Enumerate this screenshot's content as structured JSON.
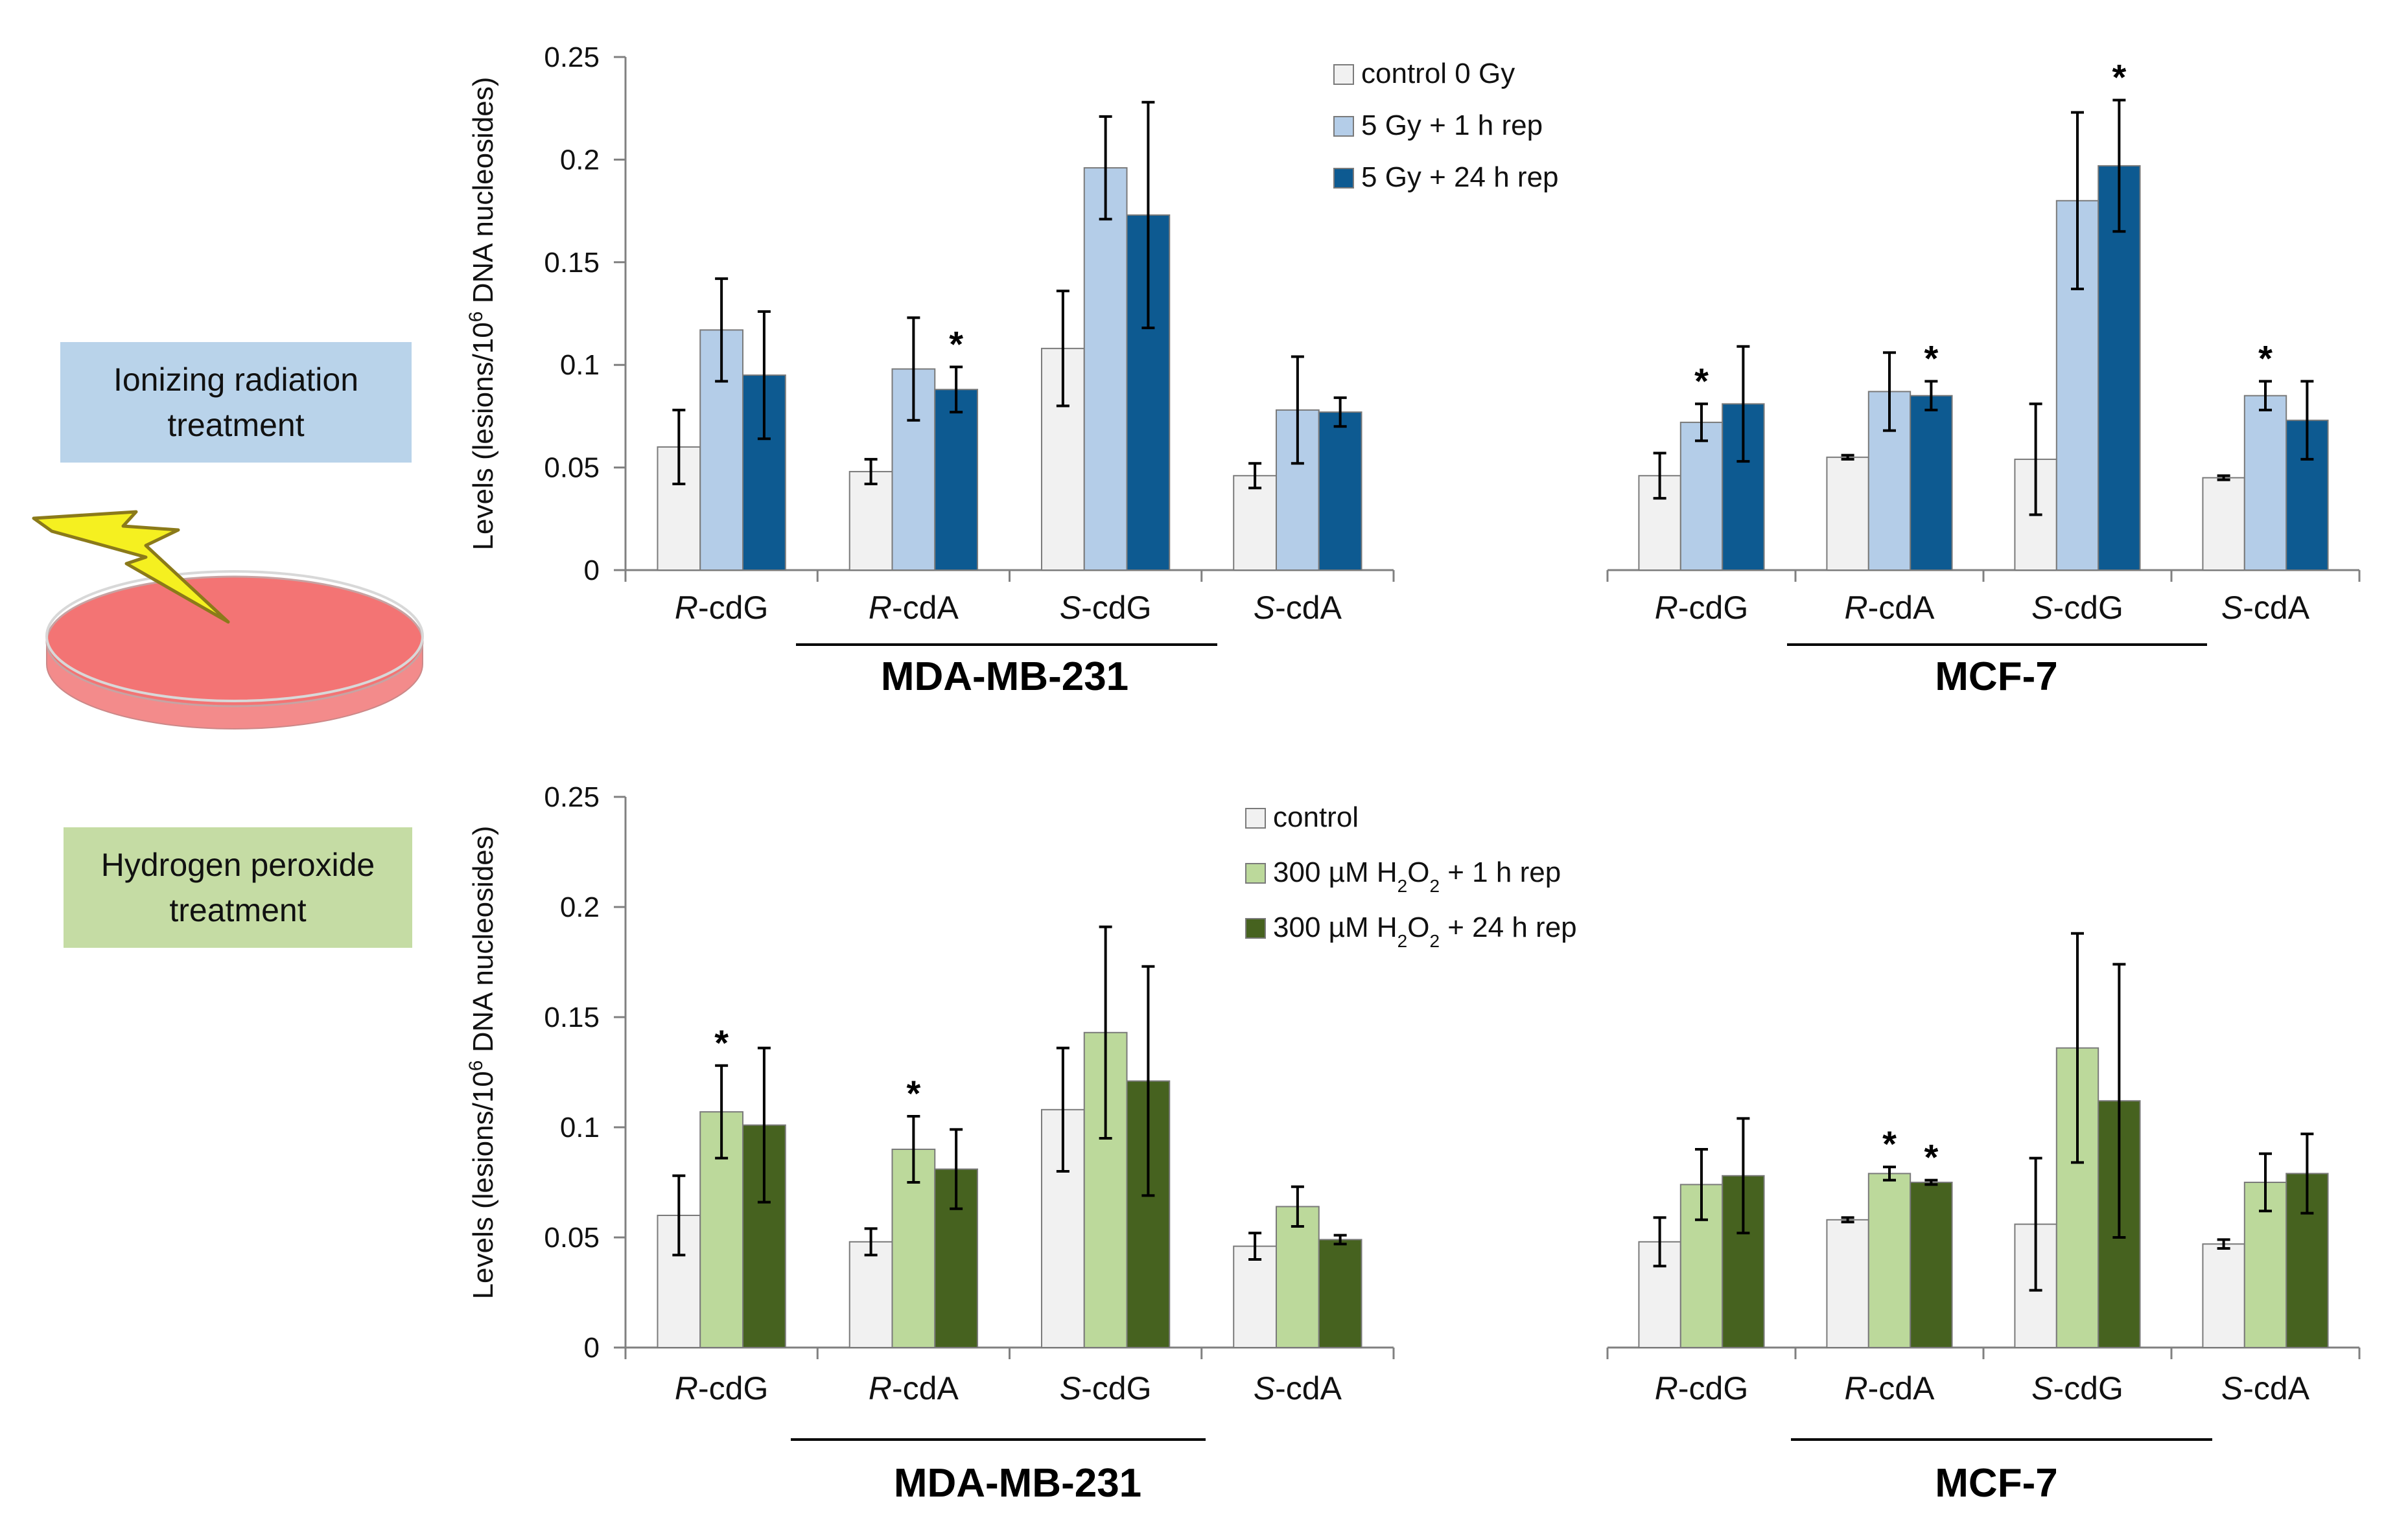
{
  "boxes": {
    "ionizing": "Ionizing radiation\ntreatment",
    "peroxide": "Hydrogen peroxide\ntreatment"
  },
  "colors": {
    "control": "#f1f1f1",
    "ir_1h": "#b4cde8",
    "ir_24h": "#0d5a91",
    "hp_1h": "#bcd99b",
    "hp_24h": "#46621f"
  },
  "chart_data": [
    {
      "type": "bar",
      "panel": "ionizing-mda",
      "cell_line": "MDA-MB-231",
      "ylabel": "Levels (lesions/10^6 DNA nucleosides)",
      "ylim": [
        0,
        0.25
      ],
      "yticks": [
        "0",
        "0.05",
        "0.1",
        "0.15",
        "0.2",
        "0.25"
      ],
      "categories": [
        {
          "italic": "R",
          "rest": "-cdG"
        },
        {
          "italic": "R",
          "rest": "-cdA"
        },
        {
          "italic": "S",
          "rest": "-cdG"
        },
        {
          "italic": "S",
          "rest": "-cdA"
        }
      ],
      "legend": [
        {
          "parts": [
            "control 0 Gy"
          ]
        },
        {
          "parts": [
            "5 Gy + 1 h rep"
          ]
        },
        {
          "parts": [
            "5 Gy + 24 h rep"
          ]
        }
      ],
      "series": [
        {
          "name": "control 0 Gy",
          "color_key": "control",
          "values": [
            0.06,
            0.048,
            0.108,
            0.046
          ],
          "errors": [
            0.018,
            0.006,
            0.028,
            0.006
          ],
          "stars": [
            "",
            "",
            "",
            ""
          ]
        },
        {
          "name": "5 Gy + 1 h rep",
          "color_key": "ir_1h",
          "values": [
            0.117,
            0.098,
            0.196,
            0.078
          ],
          "errors": [
            0.025,
            0.025,
            0.025,
            0.026
          ],
          "stars": [
            "",
            "",
            "",
            ""
          ]
        },
        {
          "name": "5 Gy + 24 h rep",
          "color_key": "ir_24h",
          "values": [
            0.095,
            0.088,
            0.173,
            0.077
          ],
          "errors": [
            0.031,
            0.011,
            0.055,
            0.007
          ],
          "stars": [
            "",
            "*",
            "",
            ""
          ]
        }
      ]
    },
    {
      "type": "bar",
      "panel": "ionizing-mcf",
      "cell_line": "MCF-7",
      "ylim": [
        0,
        0.25
      ],
      "categories": [
        {
          "italic": "R",
          "rest": "-cdG"
        },
        {
          "italic": "R",
          "rest": "-cdA"
        },
        {
          "italic": "S",
          "rest": "-cdG"
        },
        {
          "italic": "S",
          "rest": "-cdA"
        }
      ],
      "series": [
        {
          "name": "control 0 Gy",
          "color_key": "control",
          "values": [
            0.046,
            0.055,
            0.054,
            0.045
          ],
          "errors": [
            0.011,
            0.001,
            0.027,
            0.001
          ],
          "stars": [
            "",
            "",
            "",
            ""
          ]
        },
        {
          "name": "5 Gy + 1 h rep",
          "color_key": "ir_1h",
          "values": [
            0.072,
            0.087,
            0.18,
            0.085
          ],
          "errors": [
            0.009,
            0.019,
            0.043,
            0.007
          ],
          "stars": [
            "*",
            "",
            "",
            "*"
          ]
        },
        {
          "name": "5 Gy + 24 h rep",
          "color_key": "ir_24h",
          "values": [
            0.081,
            0.085,
            0.197,
            0.073
          ],
          "errors": [
            0.028,
            0.007,
            0.032,
            0.019
          ],
          "stars": [
            "",
            "*",
            "*",
            ""
          ]
        }
      ]
    },
    {
      "type": "bar",
      "panel": "peroxide-mda",
      "cell_line": "MDA-MB-231",
      "ylabel": "Levels (lesions/10^6 DNA nucleosides)",
      "ylim": [
        0,
        0.25
      ],
      "yticks": [
        "0",
        "0.05",
        "0.1",
        "0.15",
        "0.2",
        "0.25"
      ],
      "categories": [
        {
          "italic": "R",
          "rest": "-cdG"
        },
        {
          "italic": "R",
          "rest": "-cdA"
        },
        {
          "italic": "S",
          "rest": "-cdG"
        },
        {
          "italic": "S",
          "rest": "-cdA"
        }
      ],
      "legend": [
        {
          "parts": [
            "control"
          ]
        },
        {
          "parts": [
            "300 µM H",
            "2",
            "O",
            "2",
            " + 1 h rep"
          ]
        },
        {
          "parts": [
            "300 µM H",
            "2",
            "O",
            "2",
            " + 24 h rep"
          ]
        }
      ],
      "series": [
        {
          "name": "control",
          "color_key": "control",
          "values": [
            0.06,
            0.048,
            0.108,
            0.046
          ],
          "errors": [
            0.018,
            0.006,
            0.028,
            0.006
          ],
          "stars": [
            "",
            "",
            "",
            ""
          ]
        },
        {
          "name": "300 µM H2O2 + 1 h rep",
          "color_key": "hp_1h",
          "values": [
            0.107,
            0.09,
            0.143,
            0.064
          ],
          "errors": [
            0.021,
            0.015,
            0.048,
            0.009
          ],
          "stars": [
            "*",
            "*",
            "",
            ""
          ]
        },
        {
          "name": "300 µM H2O2 + 24 h rep",
          "color_key": "hp_24h",
          "values": [
            0.101,
            0.081,
            0.121,
            0.049
          ],
          "errors": [
            0.035,
            0.018,
            0.052,
            0.002
          ],
          "stars": [
            "",
            "",
            "",
            ""
          ]
        }
      ]
    },
    {
      "type": "bar",
      "panel": "peroxide-mcf",
      "cell_line": "MCF-7",
      "ylim": [
        0,
        0.25
      ],
      "categories": [
        {
          "italic": "R",
          "rest": "-cdG"
        },
        {
          "italic": "R",
          "rest": "-cdA"
        },
        {
          "italic": "S",
          "rest": "-cdG"
        },
        {
          "italic": "S",
          "rest": "-cdA"
        }
      ],
      "series": [
        {
          "name": "control",
          "color_key": "control",
          "values": [
            0.048,
            0.058,
            0.056,
            0.047
          ],
          "errors": [
            0.011,
            0.001,
            0.03,
            0.002
          ],
          "stars": [
            "",
            "",
            "",
            ""
          ]
        },
        {
          "name": "300 µM H2O2 + 1 h rep",
          "color_key": "hp_1h",
          "values": [
            0.074,
            0.079,
            0.136,
            0.075
          ],
          "errors": [
            0.016,
            0.003,
            0.052,
            0.013
          ],
          "stars": [
            "",
            "*",
            "",
            ""
          ]
        },
        {
          "name": "300 µM H2O2 + 24 h rep",
          "color_key": "hp_24h",
          "values": [
            0.078,
            0.075,
            0.112,
            0.079
          ],
          "errors": [
            0.026,
            0.001,
            0.062,
            0.018
          ],
          "stars": [
            "",
            "*",
            "",
            ""
          ]
        }
      ]
    }
  ]
}
